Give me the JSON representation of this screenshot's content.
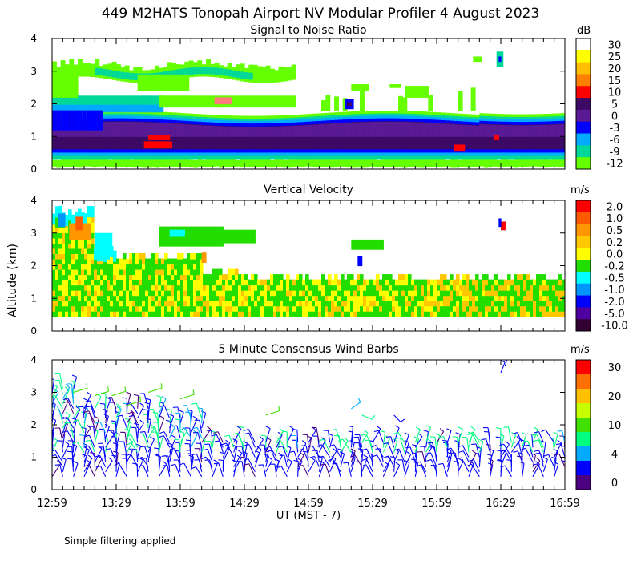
{
  "figure": {
    "title": "449 M2HATS Tonopah Airport NV Modular Profiler  4 August 2023",
    "ylabel": "Altitude (km)",
    "xlabel": "UT  (MST - 7)",
    "footnote": "Simple filtering applied"
  },
  "chart_data": [
    {
      "type": "heatmap",
      "title": "Signal to Noise Ratio",
      "xlabel": "UT  (MST - 7)",
      "ylabel": "Altitude (km)",
      "xticks": [
        "12:59",
        "13:29",
        "13:59",
        "14:29",
        "14:59",
        "15:29",
        "15:59",
        "16:29",
        "16:59"
      ],
      "yticks": [
        "0",
        "1",
        "2",
        "3",
        "4"
      ],
      "ylim": [
        0,
        4
      ],
      "colorbar": {
        "unit": "dB",
        "levels": [
          "30",
          "25",
          "20",
          "15",
          "10",
          "5",
          "0",
          "-3",
          "-6",
          "-9",
          "-12"
        ],
        "colors": [
          "#ffffff",
          "#ffff00",
          "#ffbe00",
          "#ff8000",
          "#ff0000",
          "#3c0a64",
          "#5a1a96",
          "#0000ff",
          "#00aaff",
          "#00d89a",
          "#66ff00"
        ]
      },
      "features": [
        {
          "name": "low-SNR layer below 0.4 km",
          "class": "-12"
        },
        {
          "name": "high-SNR boundary layer 0.5-1.5 km",
          "class": "5"
        },
        {
          "name": "embedded 10 dB patches near 14:14 and 16:08",
          "class": "10"
        },
        {
          "name": "elevated layer 2-2.5 km until about 13:50",
          "class": "-9"
        },
        {
          "name": "residual layer 2.7-3.4 km until about 14:50",
          "class": "-12"
        },
        {
          "name": "isolated echo near 16:29 at 3.3 km",
          "class": "-3"
        }
      ]
    },
    {
      "type": "heatmap",
      "title": "Vertical Velocity",
      "ylabel": "Altitude (km)",
      "xticks": [
        "12:59",
        "13:29",
        "13:59",
        "14:29",
        "14:59",
        "15:29",
        "15:59",
        "16:29",
        "16:59"
      ],
      "yticks": [
        "0",
        "1",
        "2",
        "3",
        "4"
      ],
      "ylim": [
        0,
        4
      ],
      "colorbar": {
        "unit": "m/s",
        "levels": [
          "2.0",
          "1.0",
          "0.5",
          "0.2",
          "0.0",
          "-0.2",
          "-0.5",
          "-1.0",
          "-2.0",
          "-5.0",
          "-10.0"
        ],
        "colors": [
          "#ff0000",
          "#ff5a00",
          "#ff9600",
          "#ffc800",
          "#ffff00",
          "#22dd00",
          "#00ffff",
          "#0096ff",
          "#0000ff",
          "#5000a0",
          "#320032"
        ]
      },
      "features": [
        {
          "name": "mixed weak updrafts and downdrafts 0.5-1.5 km",
          "class": "-0.2"
        },
        {
          "name": "updraft cells 0.0-0.2 m/s",
          "class": "0.0"
        },
        {
          "name": "stronger updrafts near 13:10 above 3 km",
          "class": "0.5"
        },
        {
          "name": "downdraft near 15:29 at 2.1 km",
          "class": "-2.0"
        }
      ]
    },
    {
      "type": "scatter",
      "title": "5 Minute Consensus Wind Barbs",
      "ylabel": "Altitude (km)",
      "xticks": [
        "12:59",
        "13:29",
        "13:59",
        "14:29",
        "14:59",
        "15:29",
        "15:59",
        "16:29",
        "16:59"
      ],
      "yticks": [
        "0",
        "1",
        "2",
        "3",
        "4"
      ],
      "ylim": [
        0,
        4
      ],
      "time_step_minutes": 5,
      "colorbar": {
        "unit": "m/s",
        "levels": [
          "30",
          "",
          "20",
          "",
          "10",
          "",
          "4",
          "",
          "0"
        ],
        "colors": [
          "#ff0000",
          "#ff7000",
          "#ffc000",
          "#c8ff00",
          "#40e000",
          "#00ff80",
          "#00aaff",
          "#0000ff",
          "#4b0082"
        ]
      },
      "layers": [
        {
          "name": "boundary layer barbs",
          "altitude_km": [
            0.3,
            1.5
          ],
          "speed_ms": [
            0,
            8
          ]
        },
        {
          "name": "mid-level barbs",
          "altitude_km": [
            1.5,
            3.3
          ],
          "speed_ms": [
            0,
            12
          ]
        },
        {
          "name": "upper barbs near 16:29",
          "altitude_km": [
            3.4,
            4.0
          ],
          "speed_ms": [
            0,
            4
          ]
        }
      ]
    }
  ]
}
